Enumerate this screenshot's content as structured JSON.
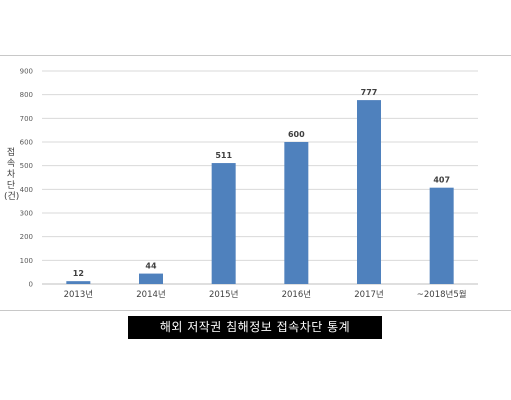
{
  "chart_data": {
    "type": "bar",
    "categories": [
      "2013년",
      "2014년",
      "2015년",
      "2016년",
      "2017년",
      "~2018년5월"
    ],
    "values": [
      12,
      44,
      511,
      600,
      777,
      407
    ],
    "data_labels": [
      "12",
      "44",
      "511",
      "600",
      "777",
      "407"
    ],
    "ylabel": "접속차단(건)",
    "ylim": [
      0,
      900
    ],
    "yticks": [
      0,
      100,
      200,
      300,
      400,
      500,
      600,
      700,
      800,
      900
    ],
    "grid": true,
    "bar_color": "#4f81bd"
  },
  "caption": "해외 저작권 침해정보 접속차단 통계"
}
